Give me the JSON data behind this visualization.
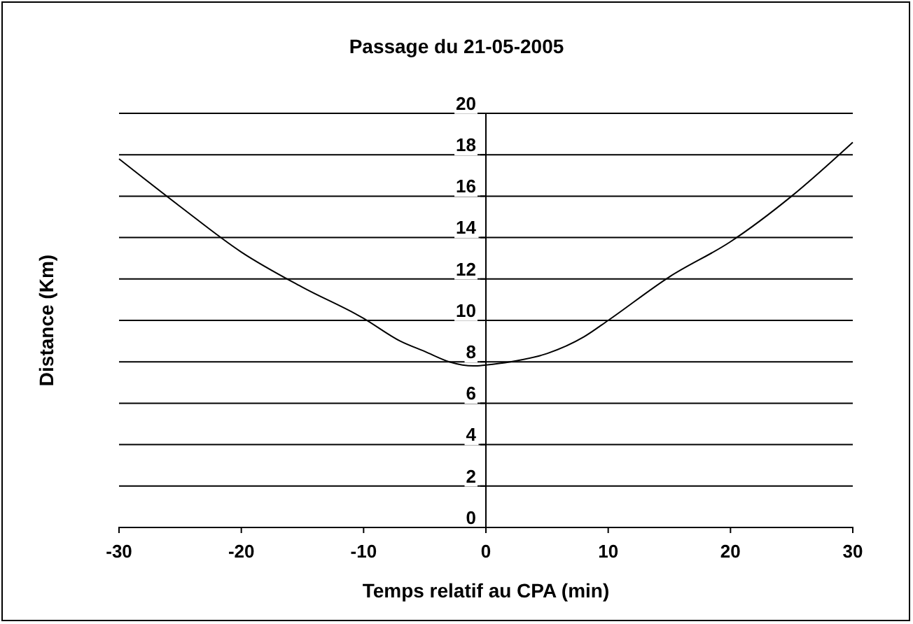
{
  "chart_data": {
    "type": "line",
    "title": "Passage du 21-05-2005",
    "xlabel": "Temps relatif au CPA (min)",
    "ylabel": "Distance (Km)",
    "x": [
      -30,
      -25,
      -20,
      -15,
      -10,
      -7,
      -5,
      -3,
      -1,
      0,
      2,
      5,
      8,
      10,
      15,
      20,
      25,
      30
    ],
    "series": [
      {
        "color": "#000000",
        "values": [
          17.8,
          15.5,
          13.3,
          11.6,
          10.1,
          9.0,
          8.5,
          8.0,
          7.8,
          7.85,
          8.0,
          8.4,
          9.2,
          10.0,
          12.1,
          13.8,
          16.0,
          18.6
        ]
      }
    ],
    "xlim": [
      -30,
      30
    ],
    "ylim": [
      0,
      20
    ],
    "xticks": [
      -30,
      -20,
      -10,
      0,
      10,
      20,
      30
    ],
    "yticks": [
      0,
      2,
      4,
      6,
      8,
      10,
      12,
      14,
      16,
      18,
      20
    ],
    "grid": "y",
    "marker": "none",
    "line_style": "solid"
  }
}
